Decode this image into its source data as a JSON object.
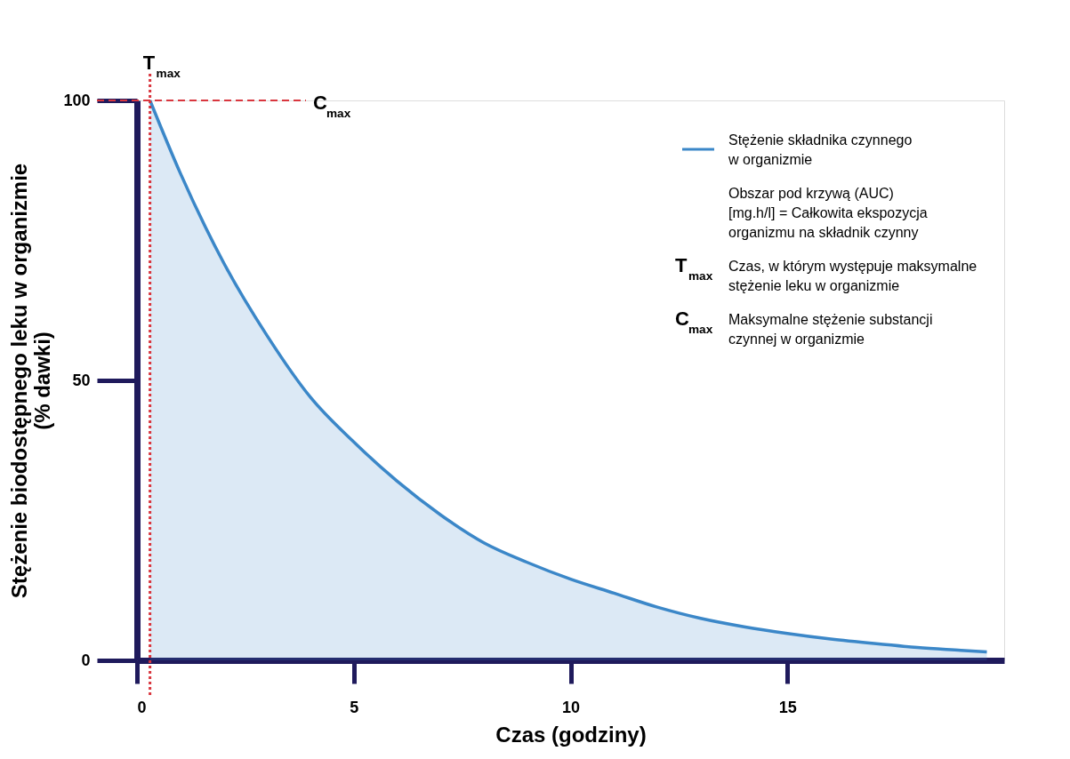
{
  "chart_data": {
    "type": "area",
    "xlabel": "Czas (godziny)",
    "ylabel": "Stężenie biodostępnego leku w organizmie\n(% dawki)",
    "x": [
      0.3,
      1,
      2,
      3,
      4,
      5,
      6,
      7,
      8,
      9,
      10,
      11,
      12,
      13,
      14,
      15,
      16,
      17,
      18,
      19,
      19.6
    ],
    "series": [
      {
        "name": "Stężenie składnika czynnego w organizmie",
        "color": "#3b87c8",
        "values": [
          100,
          87,
          71,
          58,
          47,
          39,
          32,
          26,
          21,
          17.5,
          14.5,
          12,
          9.5,
          7.5,
          6,
          4.8,
          3.8,
          3,
          2.3,
          1.8,
          1.5
        ]
      }
    ],
    "xlim": [
      0,
      20
    ],
    "ylim": [
      0,
      100
    ],
    "xticks": [
      0,
      5,
      10,
      15
    ],
    "yticks": [
      0,
      50,
      100
    ],
    "grid": false,
    "legend": "top right",
    "ref_lines": [
      {
        "axis": "x",
        "value": 0.3,
        "label": "T$_{max}$",
        "color": "#d9363e",
        "line_style": "dotted"
      },
      {
        "axis": "y",
        "value": 100,
        "label": "C$_{max}$",
        "color": "#d9363e",
        "line_style": "dashed"
      }
    ],
    "annotations": [
      "Obszar pod krzywą (AUC) [mg.h/l] = Całkowita ekspozycja organizmu na składnik czynny",
      "T$_{max}$ Czas, w którym występuje maksymalne stężenie leku w organizmie",
      "C$_{max}$ Maksymalne stężenie substancji czynnej w organizmie"
    ]
  }
}
